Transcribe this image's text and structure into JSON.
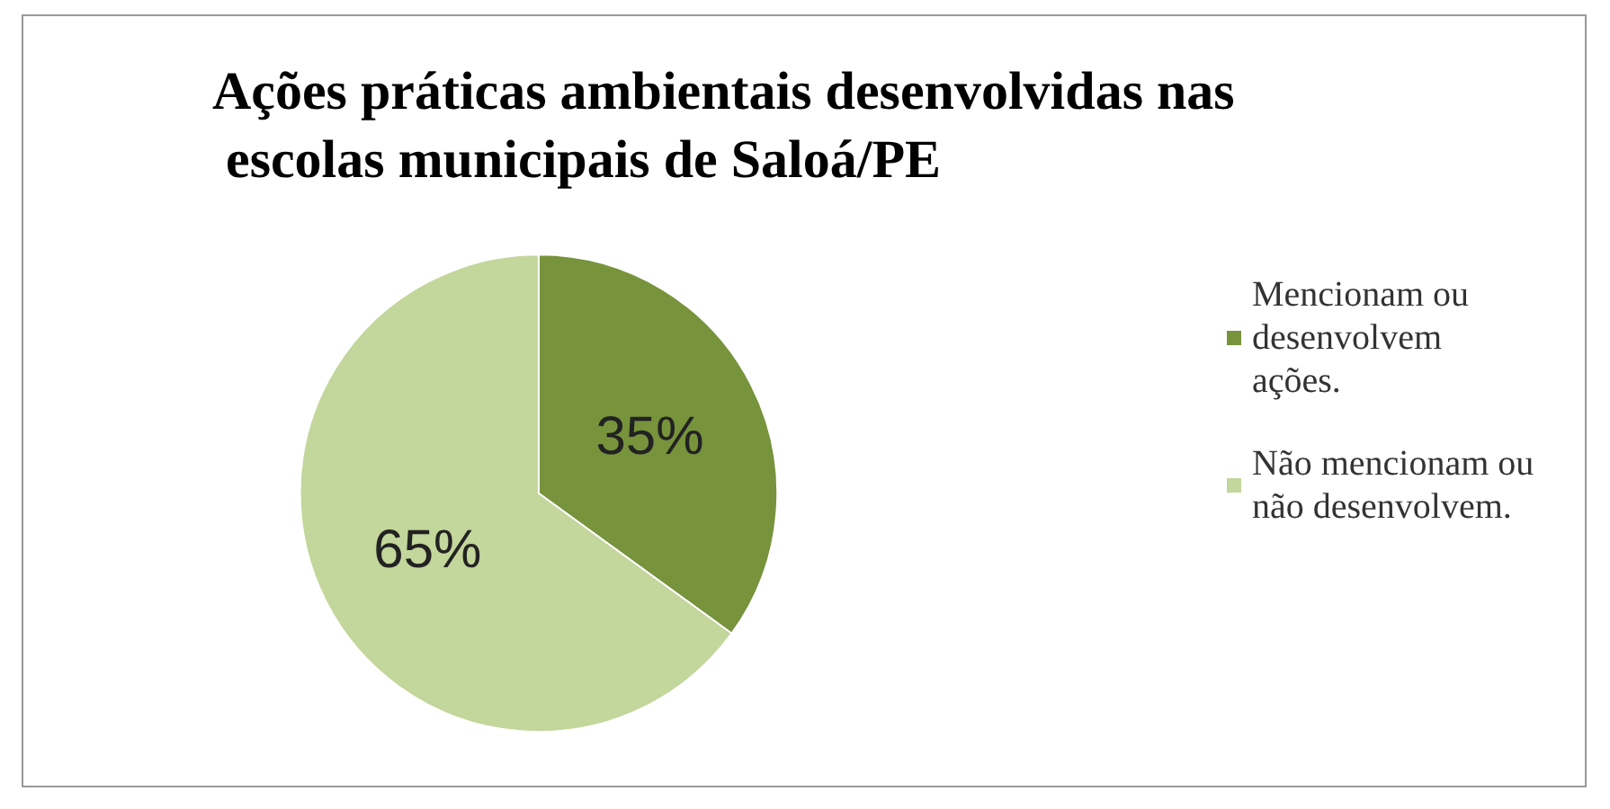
{
  "chart_data": {
    "type": "pie",
    "title": "Ações práticas ambientais desenvolvidas nas escolas municipais de Saloá/PE",
    "categories": [
      "Mencionam ou desenvolvem ações.",
      "Não mencionam ou não desenvolvem."
    ],
    "values": [
      35,
      65
    ],
    "colors": [
      "#77933c",
      "#c3d69b"
    ],
    "value_labels": [
      "35%",
      "65%"
    ],
    "legend": "right"
  }
}
